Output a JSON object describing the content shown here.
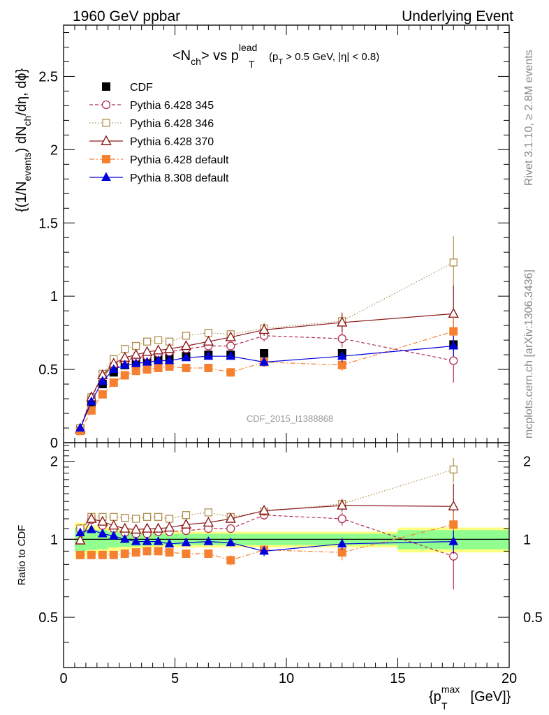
{
  "header": {
    "left": "1960 GeV ppbar",
    "right": "Underlying Event"
  },
  "side_labels": {
    "rivet": "Rivet 3.1.10, ≥ 2.8M events",
    "mcplots": "mcplots.cern.ch [arXiv:1306.3436]"
  },
  "watermark": "CDF_2015_I1388868",
  "plot_title": {
    "lhs": "<N",
    "lhs_sub": "ch",
    "mid": "> vs p",
    "mid_sup": "lead",
    "mid_sub": "T",
    "cond_open": "(p",
    "cond_sub": "T",
    "cond_rest": " > 0.5 GeV, |η| < 0.8)"
  },
  "axes": {
    "ylabel_main": {
      "a": "{(1/N",
      "a_sub": "events",
      "b": ") dN",
      "b_sub": "ch",
      "c": "/dη, dϕ}"
    },
    "ylabel_ratio": "Ratio to CDF",
    "xlabel": {
      "a": "{p",
      "a_sup": "max",
      "a_sub": "T",
      "b": " [GeV]}"
    }
  },
  "legend": [
    "CDF",
    "Pythia 6.428 345",
    "Pythia 6.428 346",
    "Pythia 6.428 370",
    "Pythia 6.428 default",
    "Pythia 8.308 default"
  ],
  "chart_data": {
    "type": "scatter",
    "xlim": [
      0,
      20
    ],
    "ylim_main": [
      0,
      2.85
    ],
    "ylim_ratio": [
      0.32,
      2.36
    ],
    "x_ticks": [
      0,
      5,
      10,
      15,
      20
    ],
    "x_tick_labels": [
      "0",
      "5",
      "10",
      "15",
      "20"
    ],
    "y_ticks_main": [
      0,
      0.5,
      1,
      1.5,
      2,
      2.5
    ],
    "y_tick_labels_main": [
      "0",
      "0.5",
      "1",
      "1.5",
      "2",
      "2.5"
    ],
    "y_ticks_ratio": [
      0.5,
      1,
      2
    ],
    "y_tick_labels_ratio": [
      "0.5",
      "1",
      "2"
    ],
    "x": [
      0.75,
      1.25,
      1.75,
      2.25,
      2.75,
      3.25,
      3.75,
      4.25,
      4.75,
      5.5,
      6.5,
      7.5,
      9.0,
      12.5,
      17.5
    ],
    "band_edges": [
      0.5,
      1.0,
      1.5,
      2.0,
      2.5,
      3.0,
      3.5,
      4.0,
      4.5,
      5.0,
      6.0,
      7.0,
      8.0,
      10.0,
      15.0,
      20.0
    ],
    "band_inner": [
      0.105,
      0.09,
      0.085,
      0.07,
      0.065,
      0.06,
      0.055,
      0.05,
      0.05,
      0.05,
      0.05,
      0.05,
      0.05,
      0.05,
      0.085
    ],
    "band_outer": [
      0.16,
      0.13,
      0.12,
      0.1,
      0.09,
      0.08,
      0.075,
      0.07,
      0.07,
      0.07,
      0.07,
      0.07,
      0.07,
      0.07,
      0.11
    ],
    "series": [
      {
        "name": "CDF",
        "color": "#000000",
        "marker": "square-filled",
        "line": "none",
        "y": [
          0.09,
          0.26,
          0.4,
          0.48,
          0.53,
          0.55,
          0.56,
          0.57,
          0.58,
          0.59,
          0.6,
          0.6,
          0.61,
          0.61,
          0.67
        ]
      },
      {
        "name": "Pythia 6.428 345",
        "color": "#b03050",
        "marker": "circle-open",
        "line": "dashed",
        "y": [
          0.1,
          0.31,
          0.45,
          0.53,
          0.56,
          0.58,
          0.59,
          0.61,
          0.62,
          0.64,
          0.66,
          0.66,
          0.73,
          0.71,
          0.56
        ],
        "yerr": [
          0,
          0,
          0,
          0,
          0,
          0,
          0,
          0,
          0,
          0,
          0,
          0.03,
          0.04,
          0.06,
          0.15
        ]
      },
      {
        "name": "Pythia 6.428 346",
        "color": "#b09050",
        "marker": "square-open",
        "line": "dotted",
        "y": [
          0.1,
          0.31,
          0.47,
          0.57,
          0.64,
          0.66,
          0.69,
          0.7,
          0.69,
          0.73,
          0.75,
          0.74,
          0.78,
          0.83,
          1.23
        ],
        "yerr": [
          0,
          0,
          0,
          0,
          0,
          0,
          0,
          0,
          0,
          0,
          0,
          0.03,
          0.04,
          0.06,
          0.18
        ]
      },
      {
        "name": "Pythia 6.428 370",
        "color": "#8b1a1a",
        "marker": "triangle-open",
        "line": "solid",
        "y": [
          0.09,
          0.31,
          0.46,
          0.54,
          0.58,
          0.6,
          0.62,
          0.63,
          0.64,
          0.66,
          0.69,
          0.72,
          0.77,
          0.82,
          0.88
        ],
        "yerr": [
          0,
          0,
          0,
          0,
          0,
          0,
          0,
          0,
          0,
          0,
          0,
          0.03,
          0.04,
          0.06,
          0.19
        ]
      },
      {
        "name": "Pythia 6.428 default",
        "color": "#f58030",
        "marker": "square-filled",
        "line": "dashdot",
        "y": [
          0.08,
          0.22,
          0.33,
          0.41,
          0.46,
          0.49,
          0.5,
          0.51,
          0.52,
          0.51,
          0.51,
          0.48,
          0.55,
          0.53,
          0.76
        ],
        "yerr": [
          0,
          0,
          0,
          0,
          0,
          0,
          0,
          0,
          0,
          0,
          0.02,
          0.03,
          0.03,
          0.04,
          0.1
        ]
      },
      {
        "name": "Pythia 8.308 default",
        "color": "#0000dd",
        "marker": "triangle-filled",
        "line": "solid",
        "y": [
          0.1,
          0.28,
          0.42,
          0.5,
          0.53,
          0.54,
          0.55,
          0.56,
          0.56,
          0.58,
          0.59,
          0.59,
          0.55,
          0.59,
          0.66
        ],
        "yerr": [
          0,
          0,
          0,
          0,
          0,
          0,
          0,
          0,
          0,
          0,
          0,
          0.02,
          0.03,
          0.04,
          0.07
        ]
      }
    ],
    "ratio_series": [
      {
        "name": "Pythia 6.428 345",
        "y": [
          1.1,
          1.19,
          1.13,
          1.1,
          1.06,
          1.05,
          1.05,
          1.07,
          1.07,
          1.08,
          1.1,
          1.1,
          1.24,
          1.2,
          0.86
        ],
        "yerr": [
          0,
          0,
          0,
          0,
          0,
          0,
          0,
          0,
          0,
          0,
          0,
          0.03,
          0.05,
          0.07,
          0.22
        ]
      },
      {
        "name": "Pythia 6.428 346",
        "y": [
          1.1,
          1.22,
          1.22,
          1.22,
          1.21,
          1.2,
          1.22,
          1.22,
          1.2,
          1.24,
          1.27,
          1.22,
          1.28,
          1.37,
          1.86
        ],
        "yerr": [
          0,
          0,
          0,
          0,
          0,
          0,
          0,
          0,
          0,
          0,
          0,
          0.03,
          0.05,
          0.07,
          0.2
        ]
      },
      {
        "name": "Pythia 6.428 370",
        "y": [
          0.99,
          1.2,
          1.17,
          1.13,
          1.1,
          1.09,
          1.1,
          1.1,
          1.11,
          1.14,
          1.16,
          1.2,
          1.29,
          1.35,
          1.34
        ],
        "yerr": [
          0,
          0,
          0,
          0,
          0,
          0,
          0,
          0,
          0,
          0,
          0,
          0.03,
          0.05,
          0.07,
          0.3
        ]
      },
      {
        "name": "Pythia 6.428 default",
        "y": [
          0.87,
          0.87,
          0.87,
          0.87,
          0.88,
          0.89,
          0.9,
          0.9,
          0.89,
          0.88,
          0.88,
          0.83,
          0.91,
          0.89,
          1.14
        ],
        "yerr": [
          0,
          0,
          0,
          0,
          0,
          0,
          0,
          0,
          0,
          0,
          0.03,
          0.04,
          0.04,
          0.06,
          0.14
        ]
      },
      {
        "name": "Pythia 8.308 default",
        "y": [
          1.06,
          1.09,
          1.05,
          1.03,
          1.0,
          0.98,
          0.98,
          0.98,
          0.96,
          0.97,
          0.98,
          0.97,
          0.9,
          0.96,
          0.98
        ],
        "yerr": [
          0,
          0,
          0,
          0,
          0,
          0,
          0,
          0,
          0,
          0,
          0,
          0.03,
          0.04,
          0.05,
          0.1
        ]
      }
    ]
  }
}
